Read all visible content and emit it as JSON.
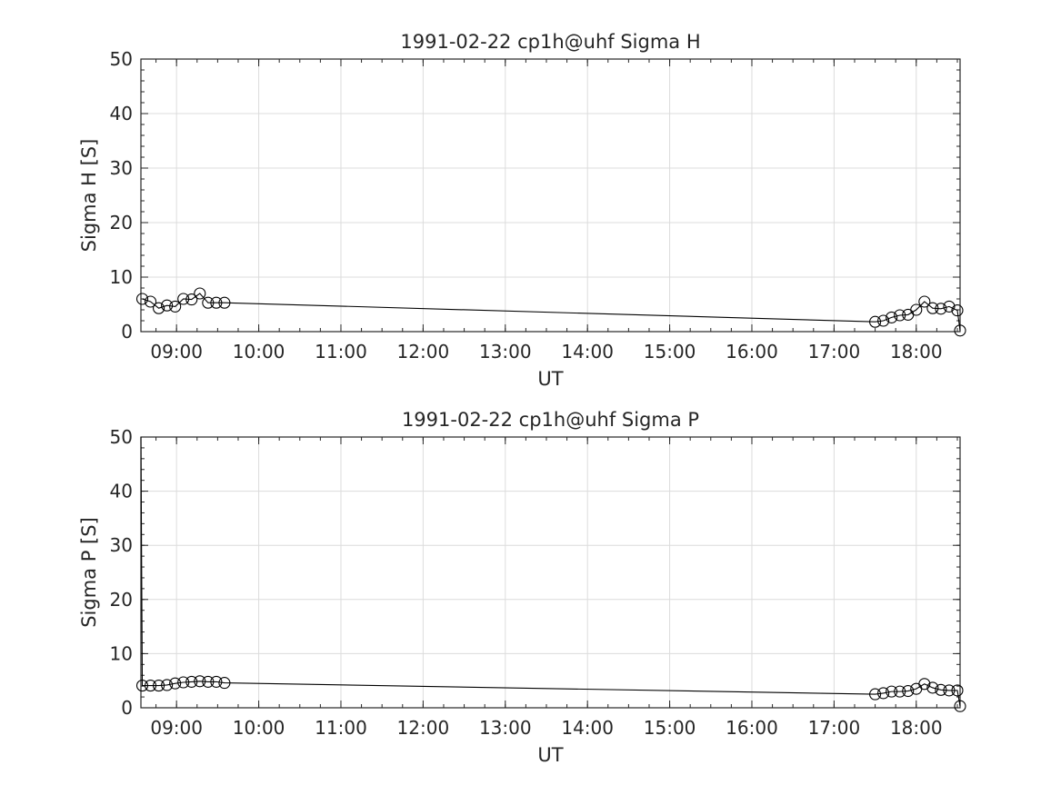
{
  "chart_data": [
    {
      "type": "line",
      "title": "1991-02-22  cp1h@uhf Sigma H",
      "xlabel": "UT",
      "ylabel": "Sigma H [S]",
      "xlim": [
        "08:34",
        "18:32"
      ],
      "ylim": [
        0,
        50
      ],
      "yticks": [
        0,
        10,
        20,
        30,
        40,
        50
      ],
      "xticks": [
        "09:00",
        "10:00",
        "11:00",
        "12:00",
        "13:00",
        "14:00",
        "15:00",
        "16:00",
        "17:00",
        "18:00"
      ],
      "grid": true,
      "series": [
        {
          "marker": "open-circle",
          "x": [
            "08:35",
            "08:41",
            "08:47",
            "08:53",
            "08:59",
            "09:05",
            "09:11",
            "09:17",
            "09:23",
            "09:29",
            "09:35",
            "17:30",
            "17:36",
            "17:42",
            "17:48",
            "17:54",
            "18:00",
            "18:06",
            "18:12",
            "18:18",
            "18:24",
            "18:30",
            "18:32"
          ],
          "y": [
            6.0,
            5.5,
            4.3,
            4.8,
            4.6,
            6.0,
            5.9,
            7.0,
            5.3,
            5.3,
            5.3,
            1.8,
            2.0,
            2.6,
            3.0,
            3.1,
            4.0,
            5.5,
            4.3,
            4.2,
            4.6,
            3.9,
            0.2
          ]
        }
      ]
    },
    {
      "type": "line",
      "title": "1991-02-22  cp1h@uhf Sigma P",
      "xlabel": "UT",
      "ylabel": "Sigma P [S]",
      "xlim": [
        "08:34",
        "18:32"
      ],
      "ylim": [
        0,
        50
      ],
      "yticks": [
        0,
        10,
        20,
        30,
        40,
        50
      ],
      "xticks": [
        "09:00",
        "10:00",
        "11:00",
        "12:00",
        "13:00",
        "14:00",
        "15:00",
        "16:00",
        "17:00",
        "18:00"
      ],
      "grid": true,
      "series": [
        {
          "marker": "open-circle",
          "x": [
            "08:34",
            "08:35",
            "08:41",
            "08:47",
            "08:53",
            "08:59",
            "09:05",
            "09:11",
            "09:17",
            "09:23",
            "09:29",
            "09:35",
            "17:30",
            "17:36",
            "17:42",
            "17:48",
            "17:54",
            "18:00",
            "18:06",
            "18:12",
            "18:18",
            "18:24",
            "18:30",
            "18:32"
          ],
          "y": [
            50,
            4.1,
            4.1,
            4.1,
            4.2,
            4.5,
            4.7,
            4.8,
            4.9,
            4.8,
            4.8,
            4.6,
            2.5,
            2.7,
            3.0,
            3.0,
            3.1,
            3.5,
            4.4,
            3.7,
            3.3,
            3.2,
            3.2,
            0.3
          ]
        }
      ]
    }
  ]
}
